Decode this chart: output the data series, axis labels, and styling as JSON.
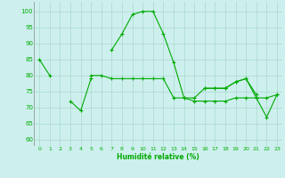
{
  "xlabel": "Humidité relative (%)",
  "xlim": [
    -0.5,
    23.5
  ],
  "ylim": [
    58,
    103
  ],
  "yticks": [
    60,
    65,
    70,
    75,
    80,
    85,
    90,
    95,
    100
  ],
  "xticks": [
    0,
    1,
    2,
    3,
    4,
    5,
    6,
    7,
    8,
    9,
    10,
    11,
    12,
    13,
    14,
    15,
    16,
    17,
    18,
    19,
    20,
    21,
    22,
    23
  ],
  "background_color": "#cdf0ee",
  "grid_color": "#aad8cc",
  "line_color": "#00aa00",
  "line1": [
    85,
    80,
    null,
    72,
    69,
    79,
    null,
    88,
    93,
    99,
    100,
    100,
    93,
    84,
    73,
    73,
    76,
    76,
    76,
    78,
    79,
    73,
    67,
    74
  ],
  "line2": [
    null,
    null,
    null,
    null,
    null,
    80,
    80,
    79,
    79,
    79,
    79,
    79,
    79,
    73,
    73,
    72,
    72,
    72,
    72,
    73,
    73,
    73,
    73,
    74
  ],
  "line3": [
    null,
    null,
    null,
    null,
    null,
    null,
    null,
    null,
    null,
    null,
    null,
    null,
    null,
    null,
    null,
    null,
    76,
    76,
    76,
    78,
    79,
    74,
    null,
    null
  ]
}
